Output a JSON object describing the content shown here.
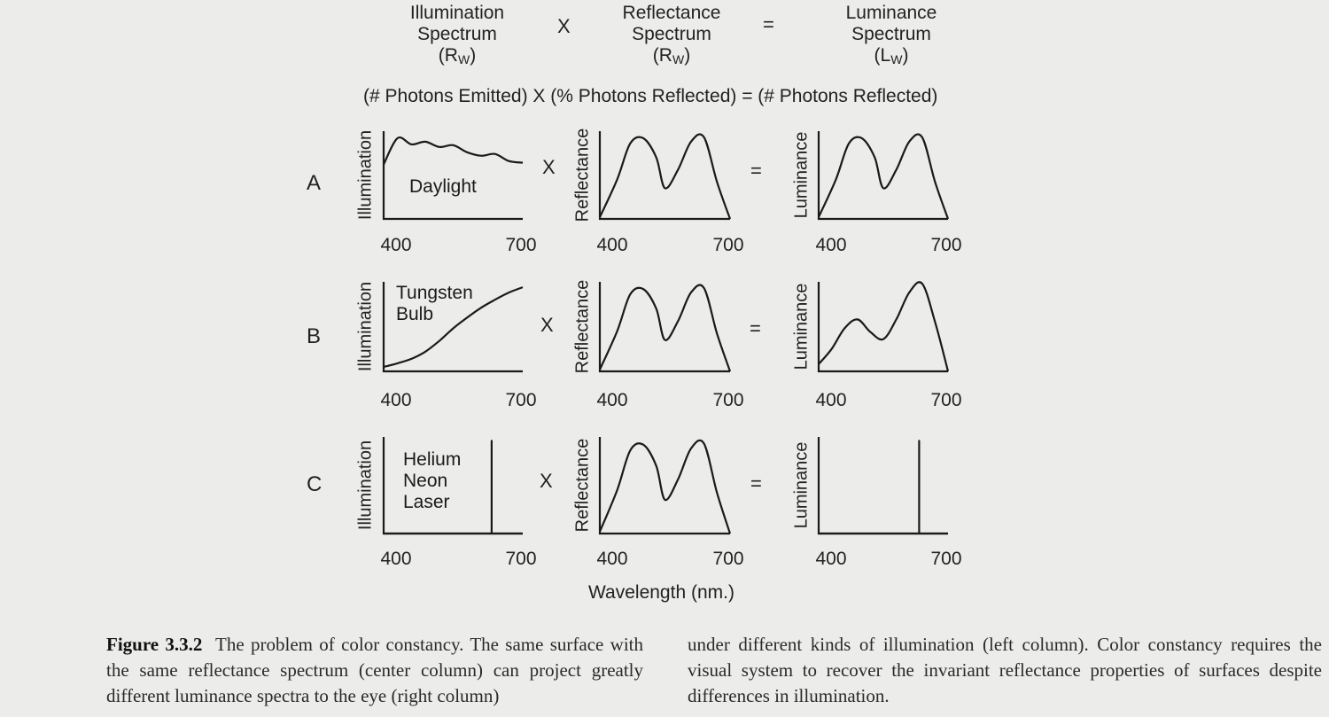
{
  "header": {
    "col1": {
      "line1": "Illumination",
      "line2": "Spectrum",
      "symbol": "R",
      "sub": "W"
    },
    "op1": "X",
    "col2": {
      "line1": "Reflectance",
      "line2": "Spectrum",
      "symbol": "R",
      "sub": "W"
    },
    "op2": "=",
    "col3": {
      "line1": "Luminance",
      "line2": "Spectrum",
      "symbol": "L",
      "sub": "W"
    }
  },
  "equation": "(# Photons Emitted) X  (% Photons Reflected) = (# Photons Reflected)",
  "rows": [
    {
      "label": "A",
      "illum_text": [
        "Daylight"
      ],
      "op_x": "X",
      "op_eq": "="
    },
    {
      "label": "B",
      "illum_text": [
        "Tungsten",
        "Bulb"
      ],
      "op_x": "X",
      "op_eq": "="
    },
    {
      "label": "C",
      "illum_text": [
        "Helium",
        "Neon",
        "Laser"
      ],
      "op_x": "X",
      "op_eq": "="
    }
  ],
  "axis": {
    "ylabels": [
      "Illumination",
      "Reflectance",
      "Luminance"
    ],
    "tick_min": "400",
    "tick_max": "700",
    "xlabel": "Wavelength (nm.)"
  },
  "chart_data": [
    {
      "type": "line",
      "panel": "A-illumination",
      "ylabel": "Illumination",
      "annotation": "Daylight",
      "x": [
        400,
        430,
        460,
        490,
        520,
        550,
        580,
        610,
        640,
        670,
        700
      ],
      "y": [
        0.62,
        0.92,
        0.85,
        0.88,
        0.82,
        0.84,
        0.76,
        0.72,
        0.74,
        0.66,
        0.64
      ]
    },
    {
      "type": "line",
      "panel": "A-reflectance",
      "ylabel": "Reflectance",
      "x": [
        400,
        440,
        470,
        500,
        530,
        550,
        580,
        610,
        640,
        670,
        700
      ],
      "y": [
        0.02,
        0.45,
        0.86,
        0.92,
        0.7,
        0.35,
        0.56,
        0.88,
        0.93,
        0.42,
        0.0
      ]
    },
    {
      "type": "line",
      "panel": "A-luminance",
      "ylabel": "Luminance",
      "x": [
        400,
        440,
        470,
        500,
        530,
        550,
        580,
        610,
        640,
        670,
        700
      ],
      "y": [
        0.02,
        0.45,
        0.86,
        0.92,
        0.7,
        0.35,
        0.56,
        0.88,
        0.93,
        0.42,
        0.0
      ]
    },
    {
      "type": "line",
      "panel": "B-illumination",
      "ylabel": "Illumination",
      "annotation": "Tungsten Bulb",
      "x": [
        400,
        430,
        460,
        490,
        520,
        550,
        580,
        610,
        640,
        670,
        700
      ],
      "y": [
        0.05,
        0.09,
        0.14,
        0.22,
        0.34,
        0.48,
        0.6,
        0.71,
        0.8,
        0.88,
        0.94
      ]
    },
    {
      "type": "line",
      "panel": "B-reflectance",
      "ylabel": "Reflectance",
      "x": [
        400,
        440,
        470,
        500,
        530,
        550,
        580,
        610,
        640,
        670,
        700
      ],
      "y": [
        0.02,
        0.45,
        0.86,
        0.92,
        0.7,
        0.35,
        0.56,
        0.88,
        0.93,
        0.42,
        0.0
      ]
    },
    {
      "type": "line",
      "panel": "B-luminance",
      "ylabel": "Luminance",
      "x": [
        400,
        430,
        460,
        490,
        520,
        550,
        580,
        610,
        640,
        670,
        700
      ],
      "y": [
        0.08,
        0.25,
        0.48,
        0.58,
        0.44,
        0.36,
        0.58,
        0.88,
        0.98,
        0.55,
        0.0
      ]
    },
    {
      "type": "line",
      "panel": "C-illumination",
      "ylabel": "Illumination",
      "annotation": "Helium Neon Laser",
      "line_at": 633,
      "x": [
        400,
        633,
        633,
        633,
        700
      ],
      "y": [
        0.0,
        0.0,
        0.96,
        0.0,
        0.0
      ]
    },
    {
      "type": "line",
      "panel": "C-reflectance",
      "ylabel": "Reflectance",
      "x": [
        400,
        440,
        470,
        500,
        530,
        550,
        580,
        610,
        640,
        670,
        700
      ],
      "y": [
        0.02,
        0.45,
        0.86,
        0.92,
        0.7,
        0.35,
        0.56,
        0.88,
        0.93,
        0.42,
        0.0
      ]
    },
    {
      "type": "line",
      "panel": "C-luminance",
      "ylabel": "Luminance",
      "line_at": 633,
      "x": [
        400,
        633,
        633,
        633,
        700
      ],
      "y": [
        0.0,
        0.0,
        0.96,
        0.0,
        0.0
      ]
    }
  ],
  "caption": {
    "label": "Figure 3.3.2",
    "left": "The problem of color constancy. The same surface with the same reflectance spectrum (center column) can project greatly different luminance spectra to the eye (right column)",
    "right": "under different kinds of illumination (left column). Color constancy requires the visual system to recover the invariant reflectance properties of surfaces despite differences in illumination."
  }
}
